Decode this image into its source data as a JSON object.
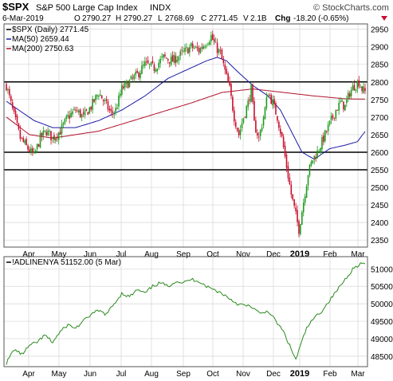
{
  "header": {
    "symbol": "$SPX",
    "name": "S&P 500 Large Cap Index",
    "exchange": "INDX",
    "watermark": "© StockCharts.com",
    "date": "6-Mar-2019",
    "open_label": "O",
    "open": "2790.27",
    "high_label": "H",
    "high": "2790.27",
    "low_label": "L",
    "low": "2768.69",
    "close_label": "C",
    "close": "2771.45",
    "volume_label": "V",
    "volume": "2.1B",
    "change_label": "Chg",
    "change": "-18.20 (-0.65%)"
  },
  "colors": {
    "up": "#1f9a1f",
    "down": "#c8102e",
    "ma50": "#1a1aa6",
    "ma200": "#b0102a",
    "adline": "#2b8a1e",
    "grid": "#d6d6d6",
    "hline": "#000000"
  },
  "chart_data": [
    {
      "type": "candlestick",
      "legend": [
        {
          "label": "$SPX (Daily) 2771.45",
          "color": "#000000"
        },
        {
          "label": "MA(50) 2659.44",
          "color": "#1a1aa6"
        },
        {
          "label": "MA(200) 2750.63",
          "color": "#b0102a"
        }
      ],
      "x_ticks": [
        "Apr",
        "May",
        "Jun",
        "Jul",
        "Aug",
        "Sep",
        "Oct",
        "Nov",
        "Dec",
        "2019",
        "Feb",
        "Mar"
      ],
      "y_ticks": [
        2350,
        2400,
        2450,
        2500,
        2550,
        2600,
        2650,
        2700,
        2750,
        2800,
        2850,
        2900,
        2950
      ],
      "ylim": [
        2330,
        2965
      ],
      "horizontal_lines": [
        2800,
        2600,
        2550
      ],
      "close_path": [
        [
          0,
          2790
        ],
        [
          4,
          2720
        ],
        [
          9,
          2640
        ],
        [
          14,
          2610
        ],
        [
          18,
          2590
        ],
        [
          22,
          2640
        ],
        [
          26,
          2660
        ],
        [
          30,
          2640
        ],
        [
          35,
          2660
        ],
        [
          40,
          2700
        ],
        [
          45,
          2720
        ],
        [
          50,
          2700
        ],
        [
          55,
          2730
        ],
        [
          60,
          2770
        ],
        [
          64,
          2740
        ],
        [
          68,
          2710
        ],
        [
          71,
          2720
        ],
        [
          75,
          2780
        ],
        [
          80,
          2800
        ],
        [
          85,
          2820
        ],
        [
          90,
          2850
        ],
        [
          96,
          2840
        ],
        [
          102,
          2870
        ],
        [
          108,
          2860
        ],
        [
          114,
          2880
        ],
        [
          120,
          2900
        ],
        [
          125,
          2890
        ],
        [
          129,
          2910
        ],
        [
          133,
          2930
        ],
        [
          136,
          2900
        ],
        [
          139,
          2880
        ],
        [
          142,
          2830
        ],
        [
          145,
          2780
        ],
        [
          148,
          2700
        ],
        [
          151,
          2650
        ],
        [
          154,
          2700
        ],
        [
          157,
          2740
        ],
        [
          159,
          2780
        ],
        [
          161,
          2680
        ],
        [
          164,
          2640
        ],
        [
          167,
          2700
        ],
        [
          170,
          2770
        ],
        [
          173,
          2740
        ],
        [
          176,
          2700
        ],
        [
          179,
          2640
        ],
        [
          182,
          2560
        ],
        [
          185,
          2480
        ],
        [
          188,
          2420
        ],
        [
          190,
          2380
        ],
        [
          193,
          2460
        ],
        [
          196,
          2540
        ],
        [
          199,
          2580
        ],
        [
          202,
          2600
        ],
        [
          205,
          2630
        ],
        [
          208,
          2660
        ],
        [
          211,
          2690
        ],
        [
          214,
          2720
        ],
        [
          217,
          2740
        ],
        [
          220,
          2730
        ],
        [
          223,
          2770
        ],
        [
          226,
          2790
        ],
        [
          229,
          2800
        ],
        [
          231,
          2780
        ],
        [
          233,
          2771
        ]
      ],
      "ma50_path": [
        [
          0,
          2745
        ],
        [
          8,
          2720
        ],
        [
          18,
          2690
        ],
        [
          30,
          2670
        ],
        [
          45,
          2670
        ],
        [
          60,
          2690
        ],
        [
          75,
          2720
        ],
        [
          90,
          2760
        ],
        [
          105,
          2810
        ],
        [
          120,
          2840
        ],
        [
          130,
          2860
        ],
        [
          137,
          2870
        ],
        [
          143,
          2860
        ],
        [
          150,
          2830
        ],
        [
          160,
          2790
        ],
        [
          170,
          2760
        ],
        [
          178,
          2720
        ],
        [
          185,
          2660
        ],
        [
          192,
          2600
        ],
        [
          200,
          2580
        ],
        [
          210,
          2610
        ],
        [
          220,
          2620
        ],
        [
          228,
          2630
        ],
        [
          233,
          2659
        ]
      ],
      "ma200_path": [
        [
          0,
          2700
        ],
        [
          15,
          2650
        ],
        [
          30,
          2640
        ],
        [
          60,
          2660
        ],
        [
          90,
          2700
        ],
        [
          120,
          2740
        ],
        [
          140,
          2770
        ],
        [
          160,
          2780
        ],
        [
          180,
          2770
        ],
        [
          200,
          2760
        ],
        [
          220,
          2752
        ],
        [
          233,
          2751
        ]
      ]
    },
    {
      "type": "line",
      "legend": [
        {
          "label": "!ADLINENYA 51152.00 (5 Mar)",
          "color": "#000000"
        }
      ],
      "x_ticks": [
        "Apr",
        "May",
        "Jun",
        "Jul",
        "Aug",
        "Sep",
        "Oct",
        "Nov",
        "Dec",
        "2019",
        "Feb",
        "Mar"
      ],
      "y_ticks": [
        48500,
        49000,
        49500,
        50000,
        50500,
        51000
      ],
      "ylim": [
        48200,
        51350
      ],
      "series": [
        {
          "name": "!ADLINENYA",
          "points": [
            [
              0,
              48300
            ],
            [
              5,
              48700
            ],
            [
              10,
              48550
            ],
            [
              15,
              48800
            ],
            [
              20,
              48900
            ],
            [
              25,
              49100
            ],
            [
              30,
              48900
            ],
            [
              35,
              49200
            ],
            [
              40,
              49400
            ],
            [
              45,
              49300
            ],
            [
              50,
              49500
            ],
            [
              55,
              49700
            ],
            [
              60,
              49800
            ],
            [
              65,
              49700
            ],
            [
              70,
              50000
            ],
            [
              75,
              50300
            ],
            [
              80,
              50200
            ],
            [
              85,
              50400
            ],
            [
              90,
              50300
            ],
            [
              95,
              50500
            ],
            [
              100,
              50600
            ],
            [
              105,
              50500
            ],
            [
              110,
              50650
            ],
            [
              115,
              50600
            ],
            [
              120,
              50700
            ],
            [
              125,
              50650
            ],
            [
              130,
              50500
            ],
            [
              135,
              50400
            ],
            [
              140,
              50300
            ],
            [
              145,
              50150
            ],
            [
              150,
              50000
            ],
            [
              155,
              49950
            ],
            [
              160,
              49900
            ],
            [
              165,
              49700
            ],
            [
              170,
              49800
            ],
            [
              175,
              49500
            ],
            [
              180,
              49200
            ],
            [
              183,
              48900
            ],
            [
              186,
              48600
            ],
            [
              188,
              48400
            ],
            [
              191,
              48800
            ],
            [
              195,
              49300
            ],
            [
              200,
              49600
            ],
            [
              205,
              49800
            ],
            [
              210,
              50100
            ],
            [
              215,
              50400
            ],
            [
              220,
              50700
            ],
            [
              225,
              51000
            ],
            [
              230,
              51150
            ],
            [
              233,
              51152
            ]
          ]
        }
      ]
    }
  ]
}
